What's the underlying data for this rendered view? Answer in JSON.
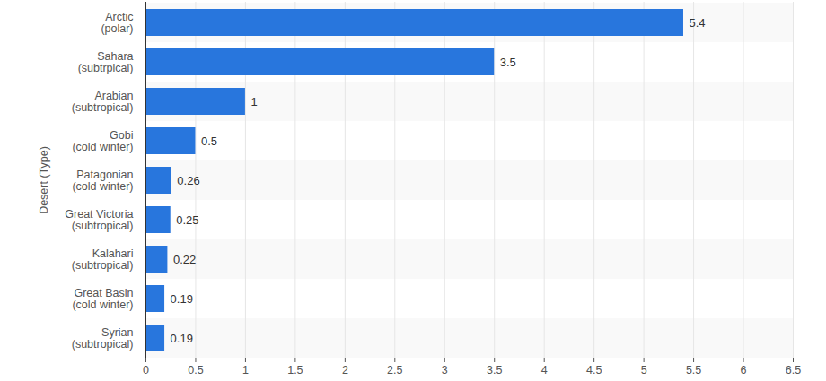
{
  "chart_data": {
    "type": "bar",
    "orientation": "horizontal",
    "y_label": "Desert (Type)",
    "categories": [
      "Arctic\n(polar)",
      "Sahara\n(subtrpical)",
      "Arabian\n(subtropical)",
      "Gobi\n(cold winter)",
      "Patagonian\n(cold winter)",
      "Great Victoria\n(subtropical)",
      "Kalahari\n(subtropical)",
      "Great Basin\n(cold winter)",
      "Syrian\n(subtropical)"
    ],
    "values": [
      5.4,
      3.5,
      1,
      0.5,
      0.26,
      0.25,
      0.22,
      0.19,
      0.19
    ],
    "color": "#2876dd",
    "xlim": [
      0,
      6.5
    ],
    "xticks": [
      0,
      0.5,
      1,
      1.5,
      2,
      2.5,
      3,
      3.5,
      4,
      4.5,
      5,
      5.5,
      6,
      6.5
    ],
    "grid": true,
    "data_labels": true
  }
}
